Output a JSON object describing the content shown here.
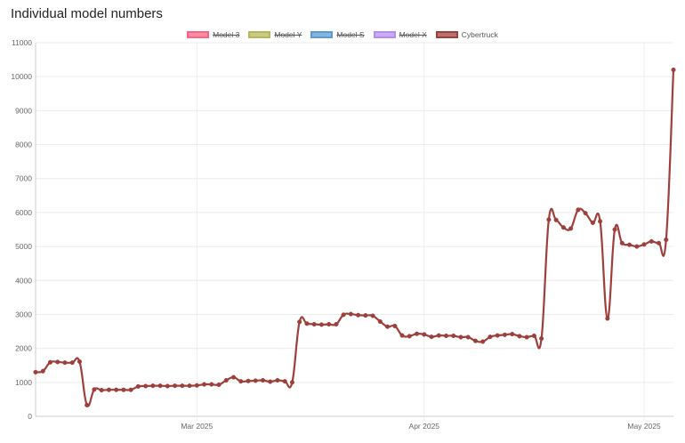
{
  "page": {
    "title": "Individual model numbers"
  },
  "chart_data": {
    "type": "line",
    "title": "Individual model numbers",
    "xlabel": "",
    "ylabel": "",
    "x_ticks": [
      {
        "label": "Mar 2025",
        "date": "2025-03-01"
      },
      {
        "label": "Apr 2025",
        "date": "2025-04-01"
      },
      {
        "label": "May 2025",
        "date": "2025-05-01"
      }
    ],
    "x_range": [
      "2025-02-07",
      "2025-05-05"
    ],
    "ylim": [
      0,
      11000
    ],
    "y_ticks": [
      0,
      1000,
      2000,
      3000,
      4000,
      5000,
      6000,
      7000,
      8000,
      9000,
      10000,
      11000
    ],
    "grid": true,
    "legend_position": "top",
    "legend": [
      {
        "name": "Model 3",
        "color": "#ff6384",
        "hidden": true
      },
      {
        "name": "Model Y",
        "color": "#b5b85a",
        "hidden": true
      },
      {
        "name": "Model S",
        "color": "#5a9bd5",
        "hidden": true
      },
      {
        "name": "Model X",
        "color": "#b58cf5",
        "hidden": true
      },
      {
        "name": "Cybertruck",
        "color": "#9e3f3c",
        "hidden": false
      }
    ],
    "series": [
      {
        "name": "Cybertruck",
        "color": "#9e3f3c",
        "x": [
          "2025-02-07",
          "2025-02-08",
          "2025-02-09",
          "2025-02-10",
          "2025-02-11",
          "2025-02-12",
          "2025-02-13",
          "2025-02-14",
          "2025-02-15",
          "2025-02-16",
          "2025-02-17",
          "2025-02-18",
          "2025-02-19",
          "2025-02-20",
          "2025-02-21",
          "2025-02-22",
          "2025-02-23",
          "2025-02-24",
          "2025-02-25",
          "2025-02-26",
          "2025-02-27",
          "2025-02-28",
          "2025-03-01",
          "2025-03-02",
          "2025-03-03",
          "2025-03-04",
          "2025-03-05",
          "2025-03-06",
          "2025-03-07",
          "2025-03-08",
          "2025-03-09",
          "2025-03-10",
          "2025-03-11",
          "2025-03-12",
          "2025-03-13",
          "2025-03-14",
          "2025-03-15",
          "2025-03-16",
          "2025-03-17",
          "2025-03-18",
          "2025-03-19",
          "2025-03-20",
          "2025-03-21",
          "2025-03-22",
          "2025-03-23",
          "2025-03-24",
          "2025-03-25",
          "2025-03-26",
          "2025-03-27",
          "2025-03-28",
          "2025-03-29",
          "2025-03-30",
          "2025-03-31",
          "2025-04-01",
          "2025-04-02",
          "2025-04-03",
          "2025-04-04",
          "2025-04-05",
          "2025-04-06",
          "2025-04-07",
          "2025-04-08",
          "2025-04-09",
          "2025-04-10",
          "2025-04-11",
          "2025-04-12",
          "2025-04-13",
          "2025-04-14",
          "2025-04-15",
          "2025-04-16",
          "2025-04-17",
          "2025-04-18",
          "2025-04-19",
          "2025-04-20",
          "2025-04-21",
          "2025-04-22",
          "2025-04-23",
          "2025-04-24",
          "2025-04-25",
          "2025-04-26",
          "2025-04-27",
          "2025-04-28",
          "2025-04-29",
          "2025-04-30",
          "2025-05-01",
          "2025-05-02",
          "2025-05-03",
          "2025-05-04",
          "2025-05-05"
        ],
        "values": [
          1300,
          1330,
          1590,
          1600,
          1580,
          1580,
          1610,
          330,
          790,
          770,
          780,
          780,
          780,
          780,
          880,
          890,
          900,
          900,
          890,
          900,
          900,
          900,
          910,
          940,
          940,
          930,
          1060,
          1150,
          1030,
          1040,
          1050,
          1060,
          1020,
          1060,
          1030,
          1000,
          2780,
          2730,
          2710,
          2700,
          2710,
          2710,
          2990,
          3010,
          2980,
          2970,
          2960,
          2790,
          2640,
          2660,
          2380,
          2360,
          2430,
          2410,
          2340,
          2380,
          2370,
          2370,
          2330,
          2330,
          2220,
          2200,
          2340,
          2380,
          2400,
          2420,
          2360,
          2330,
          2370,
          2290,
          5790,
          5780,
          5560,
          5530,
          6080,
          5980,
          5700,
          5740,
          2880,
          5500,
          5100,
          5050,
          5000,
          5060,
          5150,
          5100,
          5200,
          10200
        ]
      }
    ]
  }
}
